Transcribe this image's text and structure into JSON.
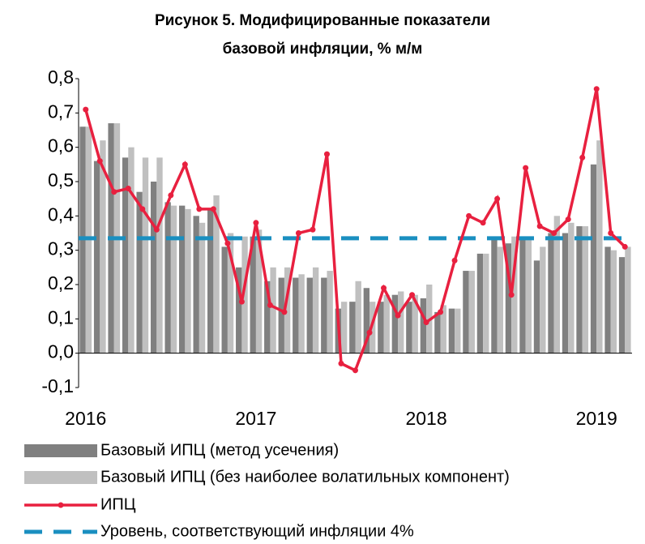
{
  "chart_data": {
    "type": "bar",
    "title": [
      "Рисунок 5. Модифицированные показатели",
      "базовой инфляции, % м/м"
    ],
    "categories": [
      "2016",
      null,
      null,
      null,
      null,
      null,
      null,
      null,
      null,
      null,
      null,
      null,
      "2017",
      null,
      null,
      null,
      null,
      null,
      null,
      null,
      null,
      null,
      null,
      null,
      "2018",
      null,
      null,
      null,
      null,
      null,
      null,
      null,
      null,
      null,
      null,
      null,
      "2019",
      null,
      null
    ],
    "series": [
      {
        "name": "Базовый ИПЦ (метод усечения)",
        "type": "bar",
        "color": "#808080",
        "values": [
          0.66,
          0.56,
          0.67,
          0.57,
          0.47,
          0.5,
          0.44,
          0.43,
          0.4,
          0.42,
          0.31,
          0.25,
          0.34,
          0.21,
          0.22,
          0.22,
          0.22,
          0.22,
          0.13,
          0.15,
          0.19,
          0.15,
          0.17,
          0.15,
          0.16,
          0.12,
          0.13,
          0.24,
          0.29,
          0.33,
          0.32,
          0.33,
          0.27,
          0.35,
          0.35,
          0.37,
          0.55,
          0.31,
          0.28
        ]
      },
      {
        "name": "Базовый ИПЦ (без наиболее волатильных компонент)",
        "type": "bar",
        "color": "#c0c0c0",
        "values": [
          0.66,
          0.62,
          0.67,
          0.6,
          0.57,
          0.57,
          0.43,
          0.42,
          0.38,
          0.46,
          0.35,
          0.34,
          0.36,
          0.25,
          0.25,
          0.23,
          0.25,
          0.24,
          0.15,
          0.21,
          0.15,
          0.17,
          0.18,
          0.17,
          0.2,
          0.14,
          0.13,
          0.24,
          0.29,
          0.31,
          0.34,
          0.34,
          0.31,
          0.4,
          0.38,
          0.37,
          0.62,
          0.3,
          0.31
        ]
      },
      {
        "name": "ИПЦ",
        "type": "line",
        "color": "#e8203f",
        "values": [
          0.71,
          0.56,
          0.47,
          0.48,
          0.42,
          0.36,
          0.46,
          0.55,
          0.42,
          0.42,
          0.32,
          0.15,
          0.38,
          0.14,
          0.12,
          0.35,
          0.36,
          0.58,
          -0.03,
          -0.05,
          0.06,
          0.19,
          0.11,
          0.17,
          0.09,
          0.12,
          0.27,
          0.4,
          0.38,
          0.45,
          0.17,
          0.54,
          0.37,
          0.35,
          0.39,
          0.57,
          0.77,
          0.35,
          0.31
        ]
      }
    ],
    "reference_line": {
      "name": "Уровень, соответствующий инфляции 4%",
      "value": 0.335,
      "color": "#1a8fc0"
    },
    "ylim": [
      -0.1,
      0.8
    ],
    "yticks": [
      {
        "value": -0.1,
        "label": "-0,1"
      },
      {
        "value": 0,
        "label": "0,0"
      },
      {
        "value": 0.1,
        "label": "0,1"
      },
      {
        "value": 0.2,
        "label": "0,2"
      },
      {
        "value": 0.3,
        "label": "0,3"
      },
      {
        "value": 0.4,
        "label": "0,4"
      },
      {
        "value": 0.5,
        "label": "0,5"
      },
      {
        "value": 0.6,
        "label": "0,6"
      },
      {
        "value": 0.7,
        "label": "0,7"
      },
      {
        "value": 0.8,
        "label": "0,8"
      }
    ],
    "legend": "bottom"
  }
}
